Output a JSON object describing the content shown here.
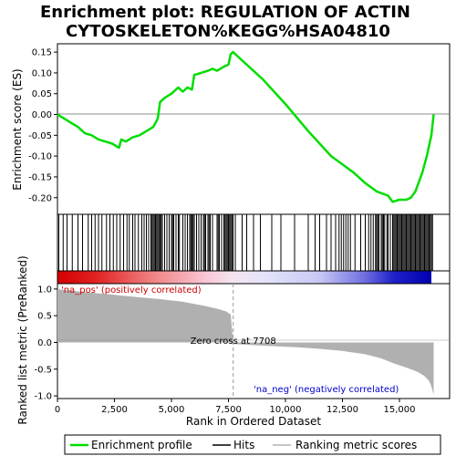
{
  "chart_data": {
    "type": "line",
    "title_line1": "Enrichment plot: REGULATION OF ACTIN",
    "title_line2": "CYTOSKELETON%KEGG%HSA04810",
    "xlabel": "Rank in Ordered Dataset",
    "ylabel_top": "Enrichment score (ES)",
    "ylabel_bottom": "Ranked list metric (PreRanked)",
    "xlim": [
      0,
      17200
    ],
    "x_ticks": [
      0,
      2500,
      5000,
      7500,
      10000,
      12500,
      15000
    ],
    "x_tick_labels": [
      "0",
      "2,500",
      "5,000",
      "7,500",
      "10,000",
      "12,500",
      "15,000"
    ],
    "es_ylim": [
      -0.24,
      0.17
    ],
    "es_ticks": [
      0.15,
      0.1,
      0.05,
      0.0,
      -0.05,
      -0.1,
      -0.15,
      -0.2
    ],
    "es_tick_labels": [
      "0.15",
      "0.10",
      "0.05",
      "0.00",
      "-0.05",
      "-0.10",
      "-0.15",
      "-0.20"
    ],
    "metric_ylim": [
      -1.05,
      1.1
    ],
    "metric_ticks": [
      1.0,
      0.5,
      0.0,
      -0.5,
      -1.0
    ],
    "metric_tick_labels": [
      "1.0",
      "0.5",
      "0.0",
      "-0.5",
      "-1.0"
    ],
    "series": [
      {
        "name": "Enrichment profile",
        "color": "#00dd00",
        "x": [
          0,
          300,
          600,
          900,
          1200,
          1500,
          1800,
          2100,
          2400,
          2700,
          2800,
          3000,
          3300,
          3600,
          3900,
          4200,
          4400,
          4500,
          4700,
          5000,
          5300,
          5500,
          5700,
          5900,
          6000,
          6300,
          6600,
          6800,
          7000,
          7300,
          7500,
          7600,
          7700,
          8000,
          9000,
          10000,
          11000,
          12000,
          13000,
          13500,
          14000,
          14500,
          14700,
          15000,
          15300,
          15500,
          15700,
          16000,
          16200,
          16400,
          16500
        ],
        "y": [
          0.0,
          -0.01,
          -0.02,
          -0.03,
          -0.045,
          -0.05,
          -0.06,
          -0.065,
          -0.07,
          -0.08,
          -0.06,
          -0.065,
          -0.055,
          -0.05,
          -0.04,
          -0.03,
          -0.01,
          0.03,
          0.04,
          0.05,
          0.065,
          0.055,
          0.065,
          0.06,
          0.095,
          0.1,
          0.105,
          0.11,
          0.105,
          0.115,
          0.12,
          0.145,
          0.15,
          0.135,
          0.085,
          0.025,
          -0.04,
          -0.1,
          -0.14,
          -0.165,
          -0.185,
          -0.195,
          -0.21,
          -0.205,
          -0.205,
          -0.2,
          -0.185,
          -0.14,
          -0.1,
          -0.05,
          0.0
        ]
      }
    ],
    "hits_label": "Hits",
    "hits": [
      60,
      250,
      420,
      650,
      900,
      1100,
      1350,
      1500,
      1650,
      1800,
      1950,
      2150,
      2300,
      2450,
      2600,
      2750,
      2900,
      3050,
      3150,
      3300,
      3400,
      3550,
      3700,
      3800,
      3900,
      4000,
      4100,
      4150,
      4200,
      4250,
      4300,
      4350,
      4400,
      4450,
      4500,
      4550,
      4600,
      4700,
      4800,
      4900,
      5000,
      5050,
      5100,
      5200,
      5300,
      5350,
      5500,
      5600,
      5700,
      5800,
      5850,
      5900,
      5950,
      6000,
      6100,
      6200,
      6300,
      6400,
      6450,
      6500,
      6600,
      6650,
      6700,
      6800,
      7000,
      7050,
      7100,
      7200,
      7300,
      7350,
      7400,
      7450,
      7500,
      7550,
      7600,
      7650,
      7700,
      7800,
      8100,
      8300,
      8600,
      8900,
      9400,
      9800,
      10400,
      11000,
      11300,
      11500,
      11800,
      12000,
      12200,
      12350,
      12450,
      12550,
      12650,
      12750,
      12850,
      13050,
      13300,
      13500,
      13650,
      13750,
      13850,
      13950,
      14000,
      14050,
      14100,
      14200,
      14250,
      14300,
      14350,
      14450,
      14500,
      14600,
      14700,
      14750,
      14800,
      14850,
      14900,
      14950,
      15000,
      15050,
      15100,
      15150,
      15200,
      15250,
      15300,
      15350,
      15400,
      15450,
      15500,
      15550,
      15600,
      15650,
      15700,
      15750,
      15800,
      15850,
      15900,
      15950,
      16000,
      16050,
      16100,
      16150,
      16200,
      16250,
      16300,
      16350,
      16400,
      16450
    ],
    "metric_label": "Ranking metric scores",
    "metric_curve": {
      "x": [
        0,
        300,
        800,
        1500,
        2500,
        3500,
        4500,
        5500,
        6500,
        7000,
        7400,
        7600,
        7708,
        7750,
        9000,
        10500,
        11500,
        12500,
        13500,
        14200,
        14800,
        15300,
        15800,
        16100,
        16300,
        16400,
        16500
      ],
      "y": [
        1.0,
        0.98,
        0.96,
        0.93,
        0.89,
        0.85,
        0.81,
        0.76,
        0.68,
        0.63,
        0.58,
        0.52,
        0.0,
        -0.03,
        -0.06,
        -0.09,
        -0.12,
        -0.16,
        -0.22,
        -0.3,
        -0.4,
        -0.47,
        -0.55,
        -0.63,
        -0.72,
        -0.82,
        -0.98
      ]
    },
    "zero_cross_text": "Zero cross at 7708",
    "zero_cross_x": 7708,
    "pos_label": "'na_pos' (positively correlated)",
    "neg_label": "'na_neg' (negatively correlated)",
    "pos_color": "#cc0000",
    "neg_color": "#0000cc",
    "line_color": "#00dd00",
    "metric_fill_color": "#b0b0b0",
    "grid": false,
    "legend_position": "bottom"
  }
}
